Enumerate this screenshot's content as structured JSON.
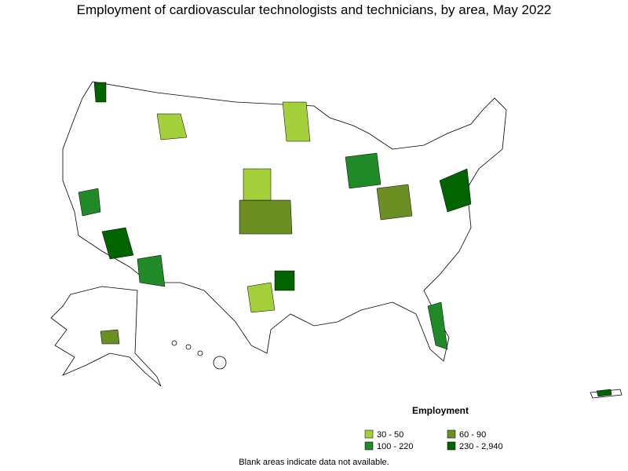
{
  "title": "Employment of cardiovascular technologists and technicians, by area, May 2022",
  "legend": {
    "title": "Employment",
    "items": [
      {
        "label": "30 - 50",
        "color": "#a2cf3a"
      },
      {
        "label": "60 - 90",
        "color": "#6b8f23"
      },
      {
        "label": "100 - 220",
        "color": "#1f8a27"
      },
      {
        "label": "230 - 2,940",
        "color": "#006400"
      }
    ]
  },
  "footnote": "Blank areas indicate data not available."
}
